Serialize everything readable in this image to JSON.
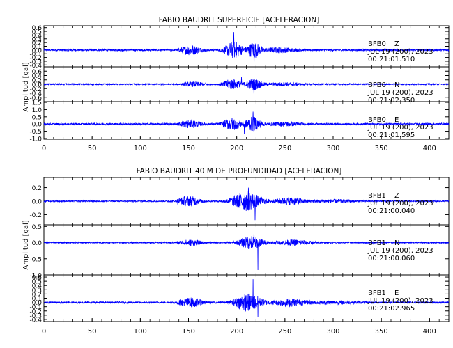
{
  "chart_data": [
    {
      "type": "line",
      "title": "FABIO BAUDRIT SUPERFICIE [ACELERACION]",
      "ylabel": "Amplitud [gal]",
      "xlabel": "",
      "xlim": [
        0,
        420
      ],
      "xticks": [
        0,
        50,
        100,
        150,
        200,
        250,
        300,
        350,
        400
      ],
      "line_color": "#0000ff",
      "grid": false,
      "traces": [
        {
          "station": "BFB0",
          "component": "Z",
          "date": "JUL 19 (200), 2023",
          "time": "00:21:01.510",
          "ylim": [
            -0.45,
            0.65
          ],
          "yticks": [
            0.6,
            0.5,
            0.4,
            0.3,
            0.2,
            0.1,
            0.0,
            -0.1,
            -0.2,
            -0.3,
            -0.4
          ],
          "ytick_labels": [
            "0.6",
            "0.5",
            "0.4",
            "0.3",
            "0.2",
            "0.1",
            "0.0",
            "-0.1",
            "-0.2",
            "-0.3",
            "-0.4"
          ],
          "noise": 0.025,
          "bursts": [
            [
              152,
              10,
              0.12
            ],
            [
              197,
              9,
              0.22
            ],
            [
              218,
              7,
              0.2
            ],
            [
              245,
              15,
              0.06
            ]
          ],
          "spikes": [
            [
              197,
              0.48
            ],
            [
              218,
              -0.44
            ]
          ]
        },
        {
          "station": "BFB0",
          "component": "N",
          "date": "JUL 19 (200), 2023",
          "time": "00:21:02.350",
          "ylim": [
            -0.8,
            0.8
          ],
          "yticks": [
            0.6,
            0.4,
            0.2,
            0.0,
            -0.2,
            -0.4,
            -0.6
          ],
          "ytick_labels": [
            "0.6",
            "0.4",
            "0.2",
            "0.0",
            "-0.2",
            "-0.4",
            "-0.6"
          ],
          "noise": 0.03,
          "bursts": [
            [
              155,
              10,
              0.1
            ],
            [
              195,
              9,
              0.22
            ],
            [
              218,
              8,
              0.25
            ],
            [
              250,
              15,
              0.07
            ]
          ],
          "spikes": [
            [
              218,
              -0.55
            ],
            [
              205,
              0.35
            ]
          ]
        },
        {
          "station": "BFB0",
          "component": "E",
          "date": "JUL 19 (200), 2023",
          "time": "00:21:01.595",
          "ylim": [
            -1.05,
            1.55
          ],
          "yticks": [
            1.5,
            1.0,
            0.5,
            0.0,
            -0.5,
            -1.0
          ],
          "ytick_labels": [
            "1.5",
            "1.0",
            "0.5",
            "0.0",
            "-0.5",
            "-1.0"
          ],
          "noise": 0.06,
          "bursts": [
            [
              152,
              10,
              0.25
            ],
            [
              195,
              9,
              0.4
            ],
            [
              217,
              8,
              0.45
            ],
            [
              250,
              15,
              0.12
            ]
          ],
          "spikes": [
            [
              217,
              0.85
            ],
            [
              208,
              -0.7
            ]
          ]
        }
      ]
    },
    {
      "type": "line",
      "title": "FABIO BAUDRIT 40 M DE PROFUNDIDAD [ACELERACION]",
      "ylabel": "Amplitud [gal]",
      "xlabel": "",
      "xlim": [
        0,
        420
      ],
      "xticks": [
        0,
        50,
        100,
        150,
        200,
        250,
        300,
        350,
        400
      ],
      "line_color": "#0000ff",
      "grid": false,
      "traces": [
        {
          "station": "BFB1",
          "component": "Z",
          "date": "JUL 19 (200), 2023",
          "time": "00:21:00.040",
          "ylim": [
            -0.35,
            0.35
          ],
          "yticks": [
            0.2,
            0.0,
            -0.2
          ],
          "ytick_labels": [
            "0.2",
            "0.0",
            "-0.2"
          ],
          "noise": 0.01,
          "bursts": [
            [
              150,
              12,
              0.07
            ],
            [
              210,
              15,
              0.14
            ],
            [
              255,
              15,
              0.05
            ],
            [
              300,
              25,
              0.02
            ]
          ],
          "spikes": [
            [
              219,
              -0.28
            ],
            [
              212,
              0.2
            ]
          ]
        },
        {
          "station": "BFB1",
          "component": "N",
          "date": "JUL 19 (200), 2023",
          "time": "00:21:00.060",
          "ylim": [
            -1.0,
            0.55
          ],
          "yticks": [
            0.5,
            0.0,
            -0.5,
            -1.0
          ],
          "ytick_labels": [
            "0.5",
            "0.0",
            "-0.5",
            "-1.0"
          ],
          "noise": 0.02,
          "bursts": [
            [
              152,
              12,
              0.08
            ],
            [
              215,
              12,
              0.2
            ],
            [
              260,
              18,
              0.08
            ]
          ],
          "spikes": [
            [
              222,
              -0.85
            ],
            [
              218,
              0.35
            ]
          ]
        },
        {
          "station": "BFB1",
          "component": "E",
          "date": "JUL 19 (200), 2023",
          "time": "00:21:02.965",
          "ylim": [
            -0.45,
            0.65
          ],
          "yticks": [
            0.6,
            0.5,
            0.4,
            0.3,
            0.2,
            0.1,
            0.0,
            -0.1,
            -0.2,
            -0.3,
            -0.4
          ],
          "ytick_labels": [
            "0.6",
            "0.5",
            "0.4",
            "0.3",
            "0.2",
            "0.1",
            "0.0",
            "-0.1",
            "-0.2",
            "-0.3",
            "-0.4"
          ],
          "noise": 0.02,
          "bursts": [
            [
              152,
              12,
              0.1
            ],
            [
              212,
              14,
              0.2
            ],
            [
              255,
              16,
              0.08
            ],
            [
              300,
              25,
              0.03
            ]
          ],
          "spikes": [
            [
              217,
              0.55
            ],
            [
              222,
              -0.35
            ]
          ]
        }
      ]
    }
  ]
}
